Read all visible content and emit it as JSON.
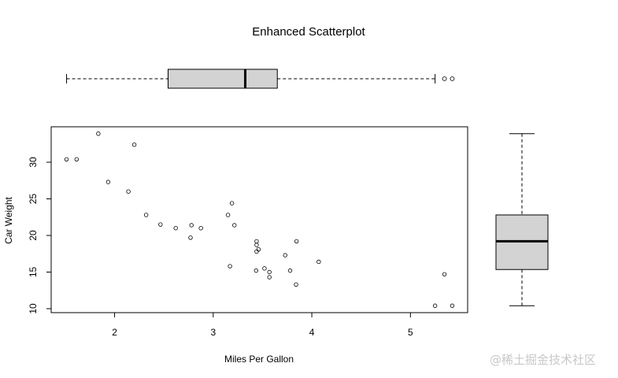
{
  "chart_data": {
    "type": "scatter",
    "title": "Enhanced Scatterplot",
    "xlabel": "Miles Per Gallon",
    "ylabel": "Car Weight",
    "xlim": [
      1.357,
      5.58
    ],
    "ylim": [
      9.46,
      34.84
    ],
    "xticks": [
      "2",
      "3",
      "4",
      "5"
    ],
    "yticks": [
      "10",
      "15",
      "20",
      "25",
      "30"
    ],
    "grid": false,
    "x": [
      2.62,
      2.875,
      2.32,
      3.215,
      3.44,
      3.46,
      3.57,
      3.19,
      3.15,
      3.44,
      3.44,
      4.07,
      3.73,
      3.78,
      5.25,
      5.424,
      5.345,
      2.2,
      1.615,
      1.835,
      2.465,
      3.52,
      3.435,
      3.84,
      3.845,
      1.935,
      2.14,
      1.513,
      3.17,
      2.77,
      3.57,
      2.78
    ],
    "y": [
      21.0,
      21.0,
      22.8,
      21.4,
      18.7,
      18.1,
      14.3,
      24.4,
      22.8,
      19.2,
      17.8,
      16.4,
      17.3,
      15.2,
      10.4,
      10.4,
      14.7,
      32.4,
      30.4,
      33.9,
      21.5,
      15.5,
      15.2,
      13.3,
      19.2,
      27.3,
      26.0,
      30.4,
      15.8,
      19.7,
      15.0,
      21.4
    ],
    "x_boxplot": {
      "whisker_low": 1.513,
      "q1": 2.5425,
      "median": 3.325,
      "q3": 3.65,
      "whisker_high": 5.25,
      "outliers": [
        5.345,
        5.424
      ],
      "fill": "#d3d3d3"
    },
    "y_boxplot": {
      "whisker_low": 10.4,
      "q1": 15.35,
      "median": 19.2,
      "q3": 22.8,
      "whisker_high": 33.9,
      "outliers": [],
      "fill": "#d3d3d3"
    }
  },
  "watermark": "@稀土掘金技术社区"
}
